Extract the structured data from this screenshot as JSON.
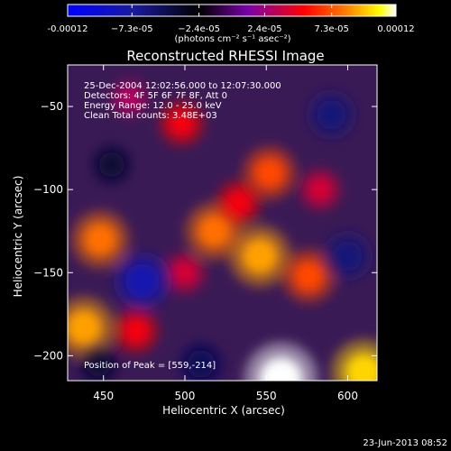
{
  "chart_data": {
    "type": "heatmap",
    "title": "Reconstructed RHESSI Image",
    "xlabel": "Heliocentric X (arcsec)",
    "ylabel": "Heliocentric Y (arcsec)",
    "xlim": [
      428,
      618
    ],
    "ylim": [
      -215,
      -25
    ],
    "x_ticks": [
      450,
      500,
      550,
      600
    ],
    "x_tick_labels": [
      "450",
      "500",
      "550",
      "600"
    ],
    "y_ticks": [
      -50,
      -100,
      -150,
      -200
    ],
    "y_tick_labels": [
      "−50",
      "−100",
      "−150",
      "−200"
    ],
    "colorbar": {
      "range": [
        -0.00012,
        0.00012
      ],
      "tick_values": [
        -0.00012,
        -7.3e-05,
        -2.4e-05,
        2.4e-05,
        7.3e-05,
        0.00012
      ],
      "tick_labels": [
        "-0.00012",
        "−7.3e-05",
        "−2.4e-05",
        "2.4e-05",
        "7.3e-05",
        "0.00012"
      ],
      "unit_label": "(photons cm⁻² s⁻¹ asec⁻²)",
      "colors": [
        "#0000ff",
        "#1a1aa0",
        "#000000",
        "#7a00aa",
        "#ff0000",
        "#ff8000",
        "#ffff00",
        "#ffffff"
      ]
    },
    "annotations": [
      "25-Dec-2004 12:02:56.000 to 12:07:30.000",
      "Detectors: 4F 5F 6F 7F 8F, Att 0",
      "Energy Range: 12.0 - 25.0 keV",
      "Clean    Total counts: 3.48E+03"
    ],
    "peak_label": "Position of Peak = [559,-214]",
    "sources": [
      {
        "x": 546,
        "y": -140,
        "value": 9e-05
      },
      {
        "x": 518,
        "y": -125,
        "value": 8e-05
      },
      {
        "x": 559,
        "y": -214,
        "value": 0.00012
      },
      {
        "x": 552,
        "y": -90,
        "value": 7e-05
      },
      {
        "x": 576,
        "y": -152,
        "value": 7e-05
      },
      {
        "x": 533,
        "y": -108,
        "value": 5e-05
      },
      {
        "x": 498,
        "y": -60,
        "value": 5e-05
      },
      {
        "x": 448,
        "y": -130,
        "value": 8e-05
      },
      {
        "x": 438,
        "y": -183,
        "value": 9e-05
      },
      {
        "x": 470,
        "y": -185,
        "value": 5e-05
      },
      {
        "x": 610,
        "y": -210,
        "value": 0.0001
      },
      {
        "x": 583,
        "y": -100,
        "value": 4e-05
      },
      {
        "x": 500,
        "y": -150,
        "value": 4e-05
      },
      {
        "x": 466,
        "y": -45,
        "value": 3e-05
      },
      {
        "x": 474,
        "y": -155,
        "value": -8e-05
      },
      {
        "x": 600,
        "y": -140,
        "value": -6e-05
      },
      {
        "x": 590,
        "y": -55,
        "value": -6e-05
      },
      {
        "x": 447,
        "y": -205,
        "value": -4e-05
      },
      {
        "x": 510,
        "y": -205,
        "value": -5e-05
      },
      {
        "x": 455,
        "y": -85,
        "value": -4e-05
      }
    ]
  },
  "footer": {
    "timestamp": "23-Jun-2013 08:52"
  }
}
